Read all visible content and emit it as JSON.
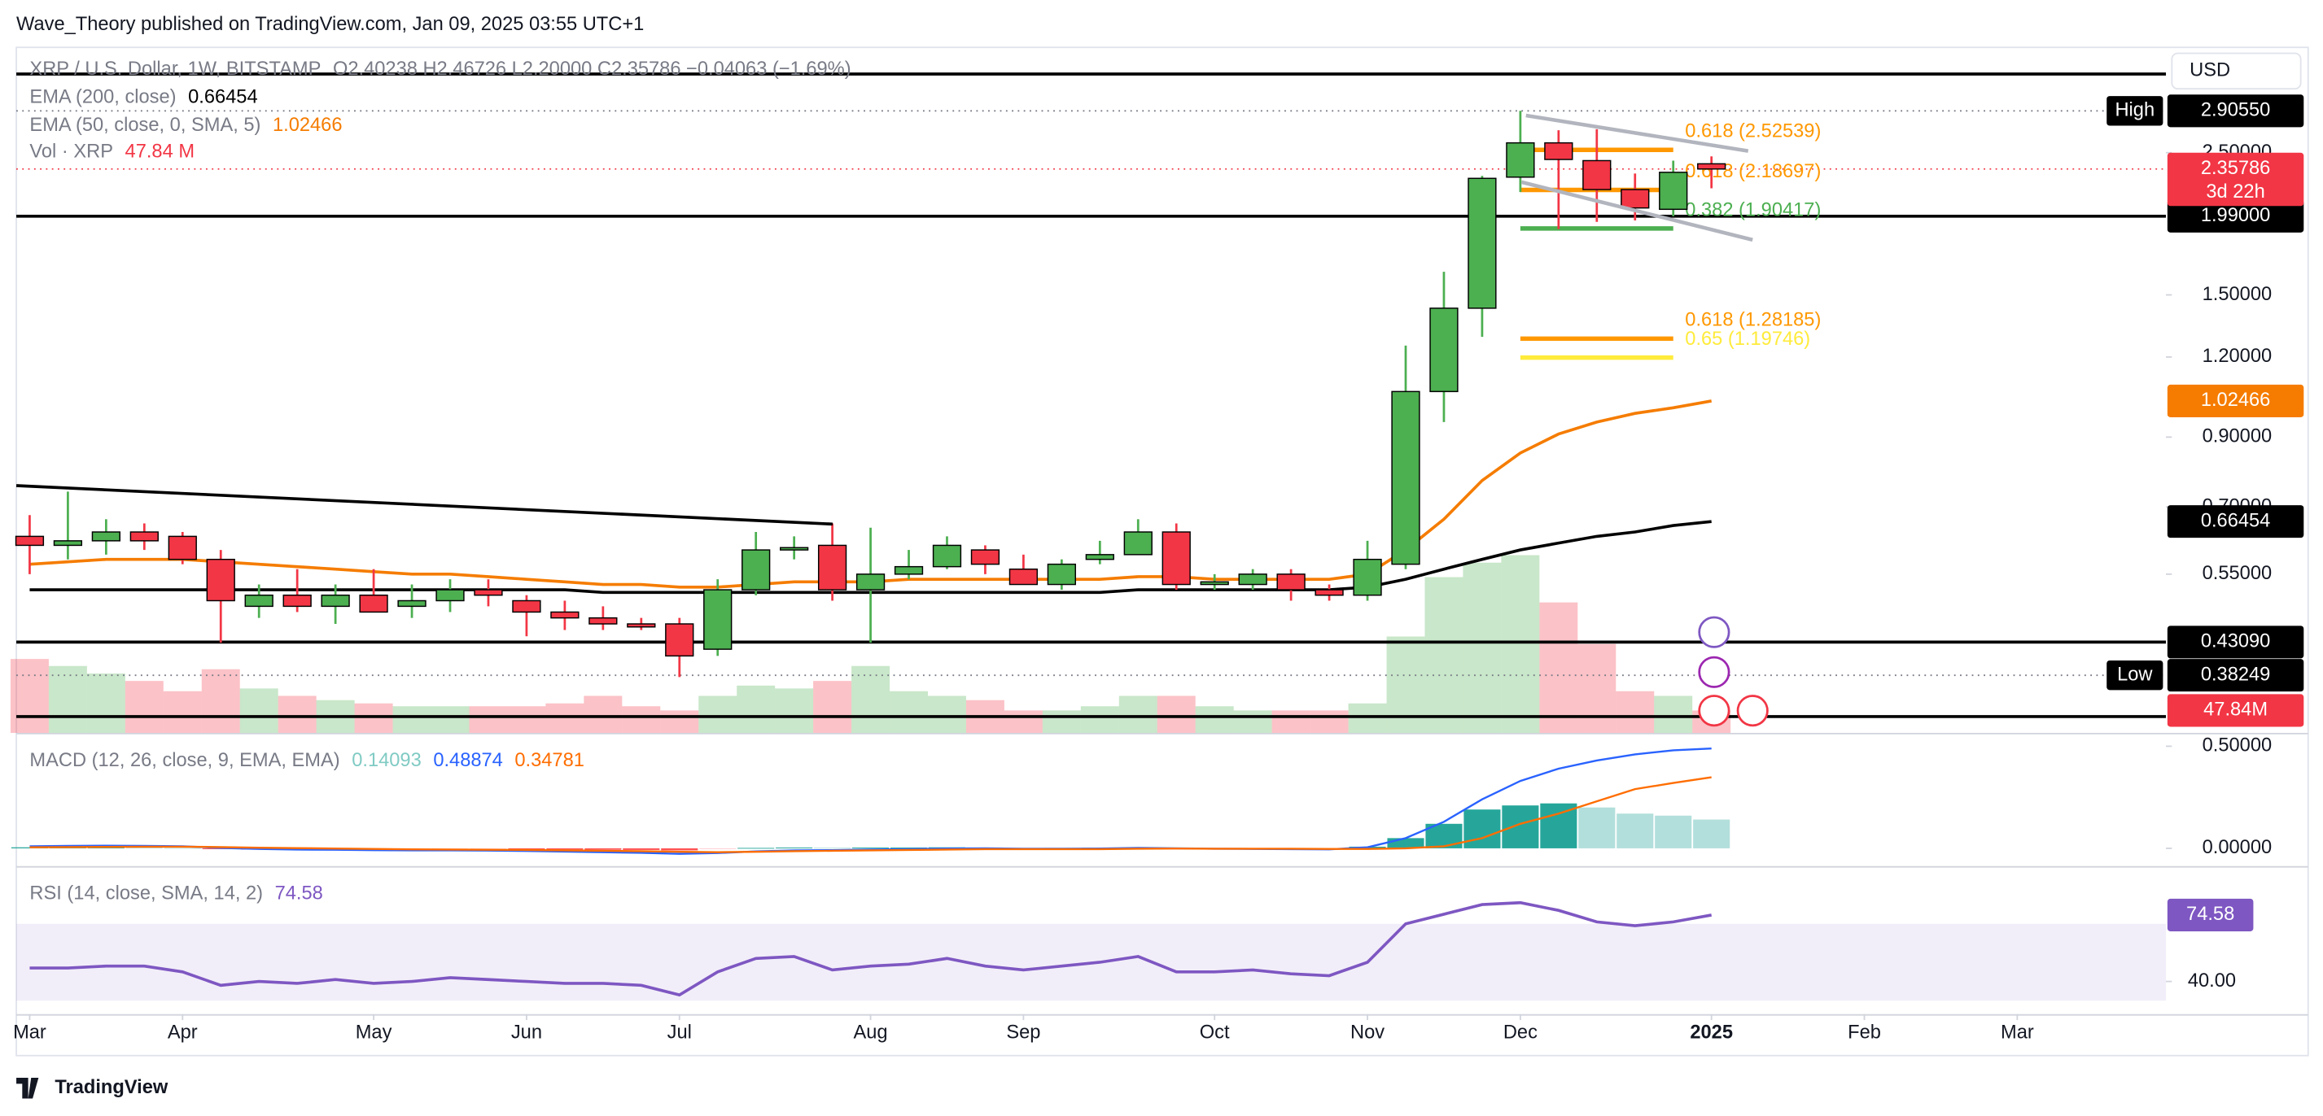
{
  "header": {
    "publisher": "Wave_Theory published on TradingView.com, Jan 09, 2025 03:55 UTC+1"
  },
  "footer": {
    "brand": "TradingView"
  },
  "chart_data": [
    {
      "type": "candlestick",
      "title": "XRP / U.S. Dollar, 1W, BITSTAMP",
      "ohlc_label": "O2.40238 H2.46726 L2.20000 C2.35786 −0.04063 (−1.69%)",
      "currency": "USD",
      "open": [
        0.63,
        0.61,
        0.62,
        0.64,
        0.63,
        0.58,
        0.49,
        0.51,
        0.49,
        0.51,
        0.49,
        0.5,
        0.52,
        0.5,
        0.48,
        0.47,
        0.46,
        0.46,
        0.42,
        0.52,
        0.6,
        0.61,
        0.52,
        0.55,
        0.565,
        0.6,
        0.56,
        0.53,
        0.58,
        0.59,
        0.64,
        0.53,
        0.53,
        0.55,
        0.52,
        0.51,
        0.57,
        1.06,
        1.43,
        2.29,
        2.59,
        2.43,
        2.19,
        2.04,
        2.40238
      ],
      "high": [
        0.68,
        0.74,
        0.67,
        0.66,
        0.64,
        0.6,
        0.53,
        0.56,
        0.53,
        0.56,
        0.53,
        0.54,
        0.54,
        0.51,
        0.5,
        0.49,
        0.47,
        0.47,
        0.54,
        0.64,
        0.63,
        0.66,
        0.65,
        0.6,
        0.63,
        0.61,
        0.59,
        0.58,
        0.62,
        0.67,
        0.66,
        0.55,
        0.56,
        0.56,
        0.53,
        0.62,
        1.25,
        1.63,
        2.3,
        2.9055,
        2.71,
        2.72,
        2.32,
        2.43,
        2.46726
      ],
      "low": [
        0.55,
        0.58,
        0.59,
        0.6,
        0.57,
        0.43,
        0.47,
        0.48,
        0.46,
        0.48,
        0.47,
        0.48,
        0.49,
        0.44,
        0.45,
        0.45,
        0.45,
        0.38,
        0.41,
        0.51,
        0.58,
        0.5,
        0.43,
        0.54,
        0.56,
        0.55,
        0.53,
        0.52,
        0.57,
        0.59,
        0.52,
        0.52,
        0.52,
        0.5,
        0.5,
        0.5,
        0.56,
        0.95,
        1.29,
        2.17,
        1.9,
        1.95,
        1.96,
        1.99,
        2.2
      ],
      "close": [
        0.61,
        0.62,
        0.64,
        0.62,
        0.58,
        0.5,
        0.51,
        0.49,
        0.51,
        0.48,
        0.5,
        0.52,
        0.51,
        0.48,
        0.47,
        0.46,
        0.455,
        0.41,
        0.52,
        0.6,
        0.605,
        0.52,
        0.55,
        0.565,
        0.61,
        0.57,
        0.53,
        0.57,
        0.59,
        0.64,
        0.53,
        0.535,
        0.55,
        0.52,
        0.51,
        0.58,
        1.06,
        1.43,
        2.28,
        2.59,
        2.44,
        2.19,
        2.05,
        2.33,
        2.35786
      ],
      "up_color": "#4caf50",
      "down_color": "#f23645",
      "series": [
        {
          "name": "EMA (200, close)",
          "legend_value": "0.66454",
          "color": "#000000",
          "values": [
            0.52,
            0.52,
            0.52,
            0.52,
            0.52,
            0.52,
            0.52,
            0.52,
            0.52,
            0.52,
            0.52,
            0.52,
            0.52,
            0.52,
            0.52,
            0.515,
            0.515,
            0.515,
            0.515,
            0.515,
            0.515,
            0.515,
            0.515,
            0.515,
            0.515,
            0.515,
            0.515,
            0.515,
            0.515,
            0.52,
            0.52,
            0.52,
            0.52,
            0.52,
            0.52,
            0.525,
            0.54,
            0.56,
            0.58,
            0.6,
            0.615,
            0.63,
            0.64,
            0.655,
            0.66454
          ]
        },
        {
          "name": "EMA (50, close, 0, SMA, 5)",
          "legend_value": "1.02466",
          "color": "#f57c00",
          "values": [
            0.57,
            0.575,
            0.58,
            0.58,
            0.58,
            0.575,
            0.57,
            0.565,
            0.56,
            0.555,
            0.55,
            0.55,
            0.545,
            0.54,
            0.535,
            0.53,
            0.53,
            0.525,
            0.525,
            0.53,
            0.535,
            0.535,
            0.535,
            0.54,
            0.54,
            0.54,
            0.54,
            0.54,
            0.54,
            0.545,
            0.545,
            0.54,
            0.54,
            0.54,
            0.54,
            0.55,
            0.6,
            0.67,
            0.77,
            0.85,
            0.91,
            0.95,
            0.98,
            1.0,
            1.02466
          ]
        }
      ],
      "volume": {
        "name": "Vol · XRP",
        "legend_value": "47.84 M",
        "tag": "47.84M",
        "ylim": [
          0,
          1466
        ],
        "values": [
          158,
          143,
          127,
          111,
          89,
          136,
          95,
          79,
          70,
          63,
          57,
          57,
          57,
          57,
          63,
          79,
          57,
          48,
          79,
          101,
          95,
          111,
          143,
          89,
          79,
          70,
          48,
          48,
          57,
          79,
          79,
          57,
          48,
          48,
          48,
          63,
          206,
          333,
          364,
          380,
          279,
          190,
          89,
          79,
          47.84
        ]
      },
      "xlim": [
        -0.349,
        55.89
      ],
      "xticks": [
        {
          "value": 0,
          "label": "Mar"
        },
        {
          "value": 4,
          "label": "Apr"
        },
        {
          "value": 9,
          "label": "May"
        },
        {
          "value": 13,
          "label": "Jun"
        },
        {
          "value": 17,
          "label": "Jul"
        },
        {
          "value": 22,
          "label": "Aug"
        },
        {
          "value": 26,
          "label": "Sep"
        },
        {
          "value": 31,
          "label": "Oct"
        },
        {
          "value": 35,
          "label": "Nov"
        },
        {
          "value": 39,
          "label": "Dec"
        },
        {
          "value": 44,
          "label": "2025",
          "bold": true
        },
        {
          "value": 48,
          "label": "Feb"
        },
        {
          "value": 52,
          "label": "Mar"
        }
      ],
      "ylim": [
        0.311,
        3.65
      ],
      "log_scale": true,
      "yticks": [
        {
          "value": 0.55,
          "label": "0.55000"
        },
        {
          "value": 0.7,
          "label": "0.70000"
        },
        {
          "value": 0.9,
          "label": "0.90000"
        },
        {
          "value": 1.2,
          "label": "1.20000"
        },
        {
          "value": 1.5,
          "label": "1.50000"
        },
        {
          "value": 2.5,
          "label": "2.50000"
        }
      ],
      "price_tags": [
        {
          "value": 2.9055,
          "label": "2.90550",
          "tag": "High",
          "color": "#000000",
          "line": "dotted"
        },
        {
          "value": 1.99,
          "label": "1.99000",
          "color": "#000000",
          "line": "solid"
        },
        {
          "value": 1.02466,
          "label": "1.02466",
          "color": "#f57c00"
        },
        {
          "value": 0.66454,
          "label": "0.66454",
          "color": "#000000"
        },
        {
          "value": 0.4309,
          "label": "0.43090",
          "color": "#000000",
          "line": "solid"
        },
        {
          "value": 0.38249,
          "label": "0.38249",
          "tag": "Low",
          "color": "#000000",
          "line": "dotted"
        },
        {
          "value": 2.35786,
          "label": "2.35786",
          "sub": "3d 22h",
          "color": "#f23645",
          "line": "dotted"
        }
      ],
      "fibs": [
        {
          "value": 2.52539,
          "label": "0.618 (2.52539)",
          "color": "#ff9800"
        },
        {
          "value": 2.18697,
          "label": "0.618 (2.18697)",
          "color": "#ff9800"
        },
        {
          "value": 1.90417,
          "label": "0.382 (1.90417)",
          "color": "#4caf50"
        },
        {
          "value": 1.28185,
          "label": "0.618 (1.28185)",
          "color": "#ff9800"
        },
        {
          "value": 1.19746,
          "label": "0.65 (1.19746)",
          "color": "#ffeb3b"
        }
      ]
    },
    {
      "type": "macd",
      "title": "MACD (12, 26, close, 9, EMA, EMA)",
      "legend_values": [
        "0.14093",
        "0.48874",
        "0.34781"
      ],
      "hist_colors": [
        "#26a69a",
        "#b2dfdb",
        "#ffcdd2",
        "#ff5252"
      ],
      "macd_color": "#2962ff",
      "signal_color": "#ff6d00",
      "histogram": [
        0.005,
        0.006,
        0.006,
        0.004,
        0.002,
        -0.004,
        -0.006,
        -0.007,
        -0.006,
        -0.006,
        -0.005,
        -0.004,
        -0.004,
        -0.005,
        -0.006,
        -0.007,
        -0.008,
        -0.01,
        -0.004,
        0.002,
        0.004,
        0.003,
        0.004,
        0.004,
        0.005,
        0.004,
        0.002,
        0.002,
        0.003,
        0.004,
        0.001,
        0.0,
        -0.001,
        -0.002,
        -0.002,
        0.008,
        0.05,
        0.12,
        0.19,
        0.21,
        0.22,
        0.2,
        0.17,
        0.16,
        0.14093
      ],
      "macd": [
        0.01,
        0.012,
        0.013,
        0.012,
        0.01,
        0.002,
        -0.003,
        -0.006,
        -0.007,
        -0.009,
        -0.01,
        -0.01,
        -0.011,
        -0.013,
        -0.016,
        -0.019,
        -0.022,
        -0.027,
        -0.023,
        -0.015,
        -0.01,
        -0.009,
        -0.006,
        -0.004,
        -0.001,
        0.0,
        -0.002,
        -0.002,
        -0.001,
        0.002,
        0.0,
        -0.002,
        -0.003,
        -0.004,
        -0.005,
        0.005,
        0.05,
        0.13,
        0.24,
        0.33,
        0.39,
        0.43,
        0.46,
        0.48,
        0.48874
      ],
      "signal": [
        0.005,
        0.006,
        0.007,
        0.008,
        0.008,
        0.006,
        0.003,
        0.001,
        -0.001,
        -0.003,
        -0.005,
        -0.006,
        -0.007,
        -0.008,
        -0.01,
        -0.012,
        -0.014,
        -0.017,
        -0.019,
        -0.017,
        -0.014,
        -0.012,
        -0.01,
        -0.008,
        -0.006,
        -0.004,
        -0.004,
        -0.004,
        -0.004,
        -0.002,
        -0.001,
        -0.002,
        -0.002,
        -0.002,
        -0.003,
        -0.003,
        0.0,
        0.01,
        0.05,
        0.12,
        0.17,
        0.23,
        0.29,
        0.32,
        0.34781
      ],
      "ylim": [
        -0.087,
        0.551
      ],
      "yticks": [
        {
          "value": 0.5,
          "label": "0.50000"
        },
        {
          "value": 0,
          "label": "0.00000"
        }
      ]
    },
    {
      "type": "line",
      "title": "RSI (14, close, SMA, 14, 2)",
      "legend_value": "74.58",
      "color": "#7e57c2",
      "band": [
        30,
        70
      ],
      "values": [
        47,
        47,
        48,
        48,
        45,
        38,
        40,
        39,
        41,
        39,
        40,
        42,
        41,
        40,
        39,
        39,
        38,
        33,
        45,
        52,
        53,
        46,
        48,
        49,
        52,
        48,
        46,
        48,
        50,
        53,
        45,
        45,
        46,
        44,
        43,
        50,
        70,
        75,
        80,
        81,
        77,
        71,
        69,
        71,
        74.58
      ],
      "tag": {
        "value": 74.58,
        "label": "74.58"
      },
      "ylim": [
        23,
        98.5
      ],
      "yticks": [
        {
          "value": 40,
          "label": "40.00"
        }
      ]
    }
  ]
}
